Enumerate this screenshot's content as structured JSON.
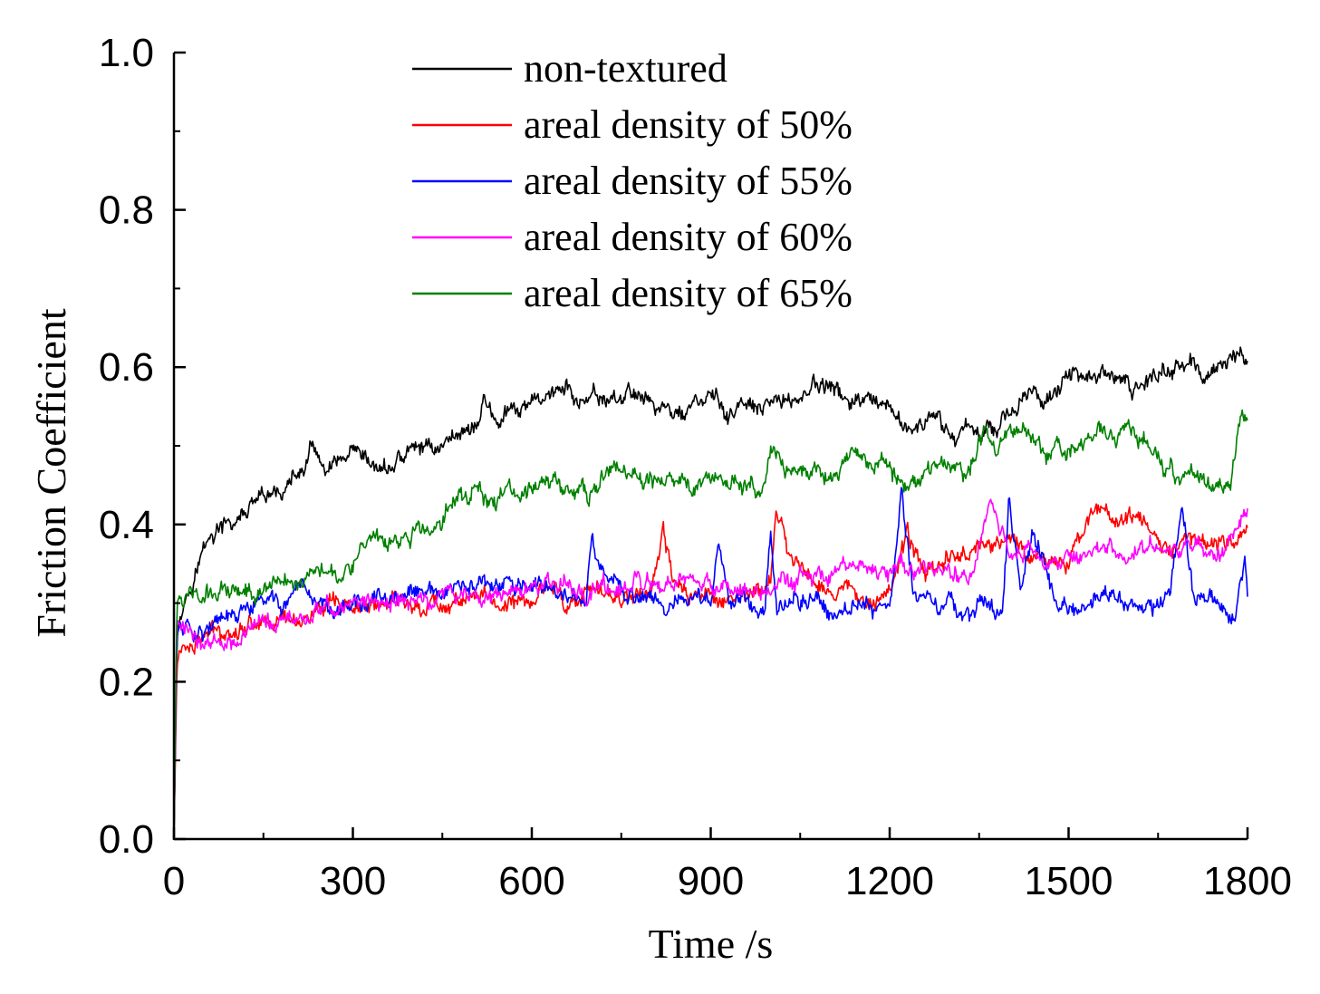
{
  "chart_data": {
    "type": "line",
    "xlabel": "Time /s",
    "ylabel": "Friction Coefficient",
    "xlim": [
      0,
      1800
    ],
    "ylim": [
      0.0,
      1.0
    ],
    "xticks": [
      0,
      300,
      600,
      900,
      1200,
      1500,
      1800
    ],
    "xtick_labels": [
      "0",
      "300",
      "600",
      "900",
      "1200",
      "1500",
      "1800"
    ],
    "yticks": [
      0.0,
      0.2,
      0.4,
      0.6,
      0.8,
      1.0
    ],
    "ytick_labels": [
      "0.0",
      "0.2",
      "0.4",
      "0.6",
      "0.8",
      "1.0"
    ],
    "grid": false,
    "legend_position": "top-center",
    "series": [
      {
        "name": "non-textured",
        "color": "#000000",
        "x": [
          0,
          5,
          10,
          20,
          30,
          50,
          70,
          100,
          130,
          160,
          190,
          220,
          235,
          250,
          270,
          300,
          330,
          360,
          390,
          420,
          450,
          480,
          510,
          520,
          540,
          570,
          600,
          630,
          660,
          690,
          720,
          750,
          780,
          810,
          840,
          870,
          900,
          930,
          960,
          990,
          1020,
          1050,
          1070,
          1100,
          1130,
          1160,
          1190,
          1220,
          1250,
          1280,
          1310,
          1330,
          1350,
          1380,
          1410,
          1440,
          1470,
          1500,
          1520,
          1550,
          1580,
          1610,
          1640,
          1670,
          1700,
          1730,
          1760,
          1780,
          1790,
          1800
        ],
        "y": [
          0.0,
          0.25,
          0.29,
          0.31,
          0.33,
          0.37,
          0.39,
          0.4,
          0.42,
          0.43,
          0.45,
          0.47,
          0.5,
          0.46,
          0.47,
          0.48,
          0.47,
          0.47,
          0.49,
          0.5,
          0.5,
          0.52,
          0.53,
          0.56,
          0.53,
          0.54,
          0.55,
          0.57,
          0.57,
          0.55,
          0.56,
          0.56,
          0.57,
          0.55,
          0.54,
          0.55,
          0.56,
          0.54,
          0.55,
          0.54,
          0.56,
          0.56,
          0.58,
          0.57,
          0.56,
          0.55,
          0.54,
          0.53,
          0.52,
          0.53,
          0.51,
          0.53,
          0.52,
          0.53,
          0.55,
          0.56,
          0.57,
          0.58,
          0.6,
          0.59,
          0.58,
          0.57,
          0.59,
          0.6,
          0.6,
          0.59,
          0.6,
          0.62,
          0.61,
          0.6
        ]
      },
      {
        "name": "areal density of 50%",
        "color": "#ff0000",
        "x": [
          0,
          5,
          10,
          30,
          60,
          100,
          150,
          200,
          250,
          300,
          350,
          400,
          450,
          500,
          550,
          600,
          630,
          660,
          700,
          750,
          800,
          820,
          840,
          870,
          900,
          950,
          1000,
          1010,
          1030,
          1060,
          1100,
          1150,
          1200,
          1230,
          1260,
          1300,
          1340,
          1380,
          1420,
          1460,
          1500,
          1540,
          1580,
          1620,
          1650,
          1680,
          1720,
          1760,
          1800
        ],
        "y": [
          0.0,
          0.22,
          0.24,
          0.25,
          0.26,
          0.27,
          0.28,
          0.28,
          0.29,
          0.29,
          0.3,
          0.3,
          0.3,
          0.31,
          0.3,
          0.3,
          0.33,
          0.3,
          0.31,
          0.31,
          0.32,
          0.38,
          0.32,
          0.31,
          0.31,
          0.31,
          0.32,
          0.42,
          0.36,
          0.34,
          0.32,
          0.31,
          0.32,
          0.38,
          0.34,
          0.36,
          0.37,
          0.38,
          0.37,
          0.36,
          0.35,
          0.42,
          0.41,
          0.4,
          0.37,
          0.38,
          0.39,
          0.37,
          0.4
        ]
      },
      {
        "name": "areal density of 55%",
        "color": "#0000ff",
        "x": [
          0,
          5,
          10,
          30,
          60,
          100,
          150,
          200,
          250,
          300,
          350,
          400,
          450,
          500,
          550,
          600,
          650,
          690,
          700,
          720,
          760,
          800,
          850,
          900,
          915,
          930,
          960,
          990,
          1000,
          1010,
          1040,
          1080,
          1120,
          1160,
          1200,
          1220,
          1240,
          1280,
          1320,
          1360,
          1390,
          1400,
          1420,
          1440,
          1480,
          1520,
          1560,
          1600,
          1640,
          1670,
          1690,
          1710,
          1750,
          1780,
          1795,
          1800
        ],
        "y": [
          0.0,
          0.26,
          0.27,
          0.27,
          0.27,
          0.28,
          0.3,
          0.3,
          0.3,
          0.3,
          0.3,
          0.31,
          0.31,
          0.32,
          0.32,
          0.32,
          0.31,
          0.3,
          0.38,
          0.33,
          0.31,
          0.31,
          0.3,
          0.3,
          0.38,
          0.31,
          0.3,
          0.29,
          0.4,
          0.3,
          0.31,
          0.3,
          0.29,
          0.3,
          0.3,
          0.44,
          0.31,
          0.3,
          0.29,
          0.3,
          0.29,
          0.42,
          0.32,
          0.4,
          0.3,
          0.29,
          0.31,
          0.3,
          0.29,
          0.31,
          0.43,
          0.31,
          0.3,
          0.29,
          0.36,
          0.3
        ]
      },
      {
        "name": "areal density of 60%",
        "color": "#ff00ff",
        "x": [
          0,
          5,
          10,
          30,
          60,
          100,
          150,
          200,
          250,
          300,
          350,
          400,
          450,
          500,
          550,
          600,
          650,
          700,
          750,
          800,
          850,
          900,
          950,
          1000,
          1050,
          1100,
          1150,
          1200,
          1250,
          1300,
          1340,
          1370,
          1400,
          1430,
          1460,
          1490,
          1520,
          1560,
          1600,
          1640,
          1680,
          1720,
          1760,
          1800
        ],
        "y": [
          0.0,
          0.28,
          0.27,
          0.26,
          0.25,
          0.26,
          0.27,
          0.28,
          0.29,
          0.3,
          0.3,
          0.3,
          0.31,
          0.31,
          0.31,
          0.32,
          0.32,
          0.32,
          0.32,
          0.32,
          0.32,
          0.32,
          0.32,
          0.32,
          0.33,
          0.33,
          0.34,
          0.34,
          0.34,
          0.34,
          0.34,
          0.43,
          0.36,
          0.37,
          0.35,
          0.35,
          0.36,
          0.37,
          0.36,
          0.37,
          0.36,
          0.37,
          0.37,
          0.41
        ]
      },
      {
        "name": "areal density of 65%",
        "color": "#008000",
        "x": [
          0,
          5,
          10,
          30,
          60,
          100,
          150,
          200,
          250,
          280,
          300,
          330,
          360,
          400,
          430,
          460,
          500,
          530,
          560,
          600,
          630,
          660,
          700,
          730,
          760,
          800,
          830,
          860,
          900,
          930,
          960,
          990,
          1000,
          1030,
          1060,
          1100,
          1130,
          1160,
          1200,
          1230,
          1260,
          1300,
          1330,
          1360,
          1380,
          1400,
          1430,
          1460,
          1490,
          1520,
          1550,
          1580,
          1600,
          1620,
          1650,
          1680,
          1710,
          1740,
          1770,
          1790,
          1800
        ],
        "y": [
          0.0,
          0.3,
          0.31,
          0.31,
          0.31,
          0.32,
          0.32,
          0.33,
          0.35,
          0.34,
          0.36,
          0.37,
          0.37,
          0.39,
          0.39,
          0.42,
          0.45,
          0.43,
          0.44,
          0.44,
          0.46,
          0.44,
          0.44,
          0.47,
          0.46,
          0.45,
          0.46,
          0.45,
          0.46,
          0.46,
          0.45,
          0.44,
          0.49,
          0.46,
          0.47,
          0.46,
          0.48,
          0.48,
          0.47,
          0.46,
          0.47,
          0.47,
          0.46,
          0.52,
          0.5,
          0.51,
          0.52,
          0.49,
          0.5,
          0.51,
          0.52,
          0.5,
          0.54,
          0.51,
          0.49,
          0.46,
          0.46,
          0.45,
          0.46,
          0.54,
          0.53
        ]
      }
    ]
  }
}
